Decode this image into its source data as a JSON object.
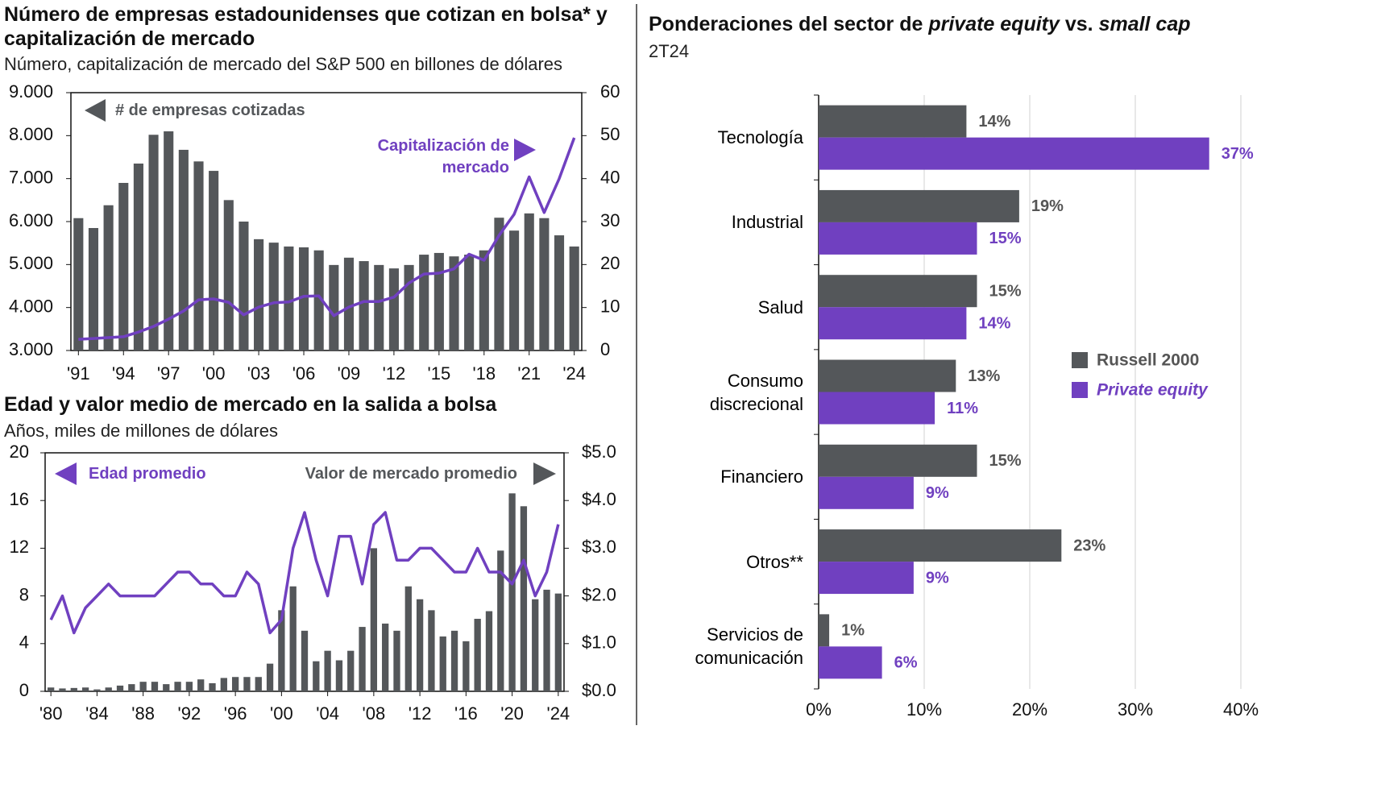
{
  "chart_data": [
    {
      "type": "bar",
      "title": "Número de empresas estadounidenses que cotizan en bolsa* y capitalización de mercado",
      "subtitle": "Número, capitalización de mercado del S&P 500 en billones de dólares",
      "categories": [
        "'91",
        null,
        null,
        "'94",
        null,
        null,
        "'97",
        null,
        null,
        "'00",
        null,
        null,
        "'03",
        null,
        null,
        "'06",
        null,
        null,
        "'09",
        null,
        null,
        "'12",
        null,
        null,
        "'15",
        null,
        null,
        "'18",
        null,
        null,
        "'21",
        null,
        null,
        "'24"
      ],
      "series": [
        {
          "name": "# de empresas cotizadas",
          "type": "bar",
          "color": "#54575a",
          "values": [
            6080,
            5850,
            6380,
            6900,
            7350,
            8020,
            8100,
            7670,
            7400,
            7180,
            6500,
            6000,
            5590,
            5510,
            5420,
            5400,
            5330,
            4990,
            5160,
            5080,
            4990,
            4910,
            4990,
            5230,
            5270,
            5190,
            5230,
            5330,
            6090,
            5790,
            6190,
            6080,
            5680,
            5420
          ]
        },
        {
          "name": "Capitalización de mercado",
          "type": "line",
          "axis": "y2",
          "color": "#7040c0",
          "values": [
            2.6,
            2.8,
            3.0,
            3.2,
            4.3,
            5.6,
            7.3,
            9.2,
            11.8,
            12.0,
            11.2,
            8.3,
            10.1,
            11.1,
            11.3,
            12.6,
            12.7,
            8.1,
            10.1,
            11.4,
            11.4,
            12.4,
            15.7,
            17.8,
            18.0,
            19.0,
            22.4,
            21.0,
            26.8,
            31.7,
            40.4,
            32.1,
            40.0,
            49.5
          ]
        }
      ],
      "ylim": [
        3000,
        9000
      ],
      "yticks": [
        {
          "value": 3000,
          "label": "3.000"
        },
        {
          "value": 4000,
          "label": "4.000"
        },
        {
          "value": 5000,
          "label": "5.000"
        },
        {
          "value": 6000,
          "label": "6.000"
        },
        {
          "value": 7000,
          "label": "7.000"
        },
        {
          "value": 8000,
          "label": "8.000"
        },
        {
          "value": 9000,
          "label": "9.000"
        }
      ],
      "y2lim": [
        0,
        60
      ],
      "y2ticks": [
        0,
        10,
        20,
        30,
        40,
        50,
        60
      ]
    },
    {
      "type": "bar",
      "title": "Edad y valor medio de mercado en la salida a bolsa",
      "subtitle": "Años, miles de millones de dólares",
      "categories": [
        "'80",
        null,
        null,
        null,
        "'84",
        null,
        null,
        null,
        "'88",
        null,
        null,
        null,
        "'92",
        null,
        null,
        null,
        "'96",
        null,
        null,
        null,
        "'00",
        null,
        null,
        null,
        "'04",
        null,
        null,
        null,
        "'08",
        null,
        null,
        null,
        "'12",
        null,
        null,
        null,
        "'16",
        null,
        null,
        null,
        "'20",
        null,
        null,
        null,
        "'24"
      ],
      "series": [
        {
          "name": "Edad promedio",
          "type": "line",
          "color": "#7040c0",
          "values": [
            6,
            8,
            4.9,
            7,
            8,
            9,
            8,
            8,
            8,
            8,
            9,
            10,
            10,
            9,
            9,
            8,
            8,
            10,
            9,
            4.9,
            6,
            12,
            15,
            11,
            8,
            13,
            13,
            9,
            14,
            15,
            11,
            11,
            12,
            12,
            11,
            10,
            10,
            12,
            10,
            10,
            9,
            11,
            8,
            10,
            14
          ]
        },
        {
          "name": "Valor de mercado promedio",
          "type": "bar",
          "axis": "y2",
          "color": "#54575a",
          "values": [
            0.08,
            0.06,
            0.07,
            0.08,
            0.04,
            0.08,
            0.12,
            0.15,
            0.2,
            0.2,
            0.15,
            0.2,
            0.2,
            0.25,
            0.17,
            0.28,
            0.3,
            0.3,
            0.3,
            0.58,
            1.7,
            2.2,
            1.27,
            0.63,
            0.85,
            0.65,
            0.85,
            1.35,
            3.0,
            1.42,
            1.27,
            2.2,
            1.93,
            1.7,
            1.15,
            1.27,
            1.05,
            1.52,
            1.68,
            2.95,
            4.15,
            3.88,
            1.93,
            2.13,
            2.05
          ]
        }
      ],
      "ylim": [
        0,
        20
      ],
      "yticks": [
        0,
        4,
        8,
        12,
        16,
        20
      ],
      "y2lim": [
        0,
        5
      ],
      "y2ticks": [
        {
          "value": 0,
          "label": "$0.0"
        },
        {
          "value": 1,
          "label": "$1.0"
        },
        {
          "value": 2,
          "label": "$2.0"
        },
        {
          "value": 3,
          "label": "$3.0"
        },
        {
          "value": 4,
          "label": "$4.0"
        },
        {
          "value": 5,
          "label": "$5.0"
        }
      ]
    },
    {
      "type": "barh",
      "title": [
        "Ponderaciones del sector de ",
        "private equity",
        " vs. ",
        "small cap"
      ],
      "subtitle": "2T24",
      "categories": [
        "Tecnología",
        "Industrial",
        "Salud",
        "Consumo discrecional",
        "Financiero",
        "Otros**",
        "Servicios de comunicación"
      ],
      "series": [
        {
          "name": "Russell 2000",
          "color": "#54575a",
          "values": [
            14,
            19,
            15,
            13,
            15,
            23,
            1
          ],
          "value_labels": [
            "14%",
            "19%",
            "15%",
            "13%",
            "15%",
            "23%",
            "1%"
          ]
        },
        {
          "name": "Private equity",
          "color": "#7040c0",
          "values": [
            37,
            15,
            14,
            11,
            9,
            9,
            6
          ],
          "value_labels": [
            "37%",
            "15%",
            "14%",
            "11%",
            "9%",
            "9%",
            "6%"
          ]
        }
      ],
      "xlim": [
        0,
        40
      ],
      "xticks": [
        {
          "value": 0,
          "label": "0%"
        },
        {
          "value": 10,
          "label": "10%"
        },
        {
          "value": 20,
          "label": "20%"
        },
        {
          "value": 30,
          "label": "30%"
        },
        {
          "value": 40,
          "label": "40%"
        }
      ],
      "grid": true
    }
  ]
}
